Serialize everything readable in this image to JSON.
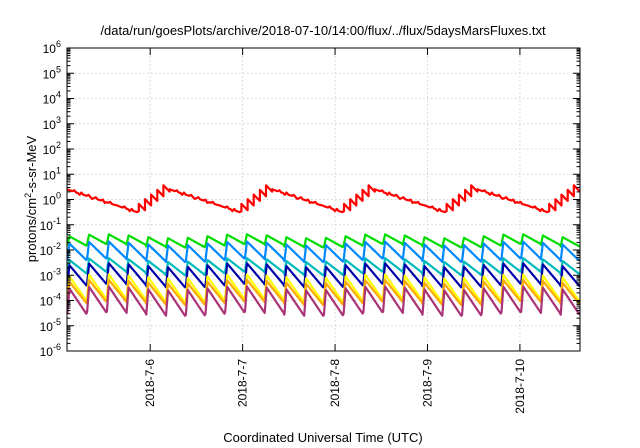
{
  "chart_data": {
    "type": "line",
    "title": "/data/run/goesPlots/archive/2018-07-10/14:00/flux/../flux/5daysMarsFluxes.txt",
    "xlabel": "Coordinated Universal Time (UTC)",
    "ylabel": "protons/cm²-s-sr-MeV",
    "ylabel_parts": {
      "pre": "protons/cm",
      "sup": "2",
      "post": "-s-sr-MeV"
    },
    "yscale": "log",
    "ylim_exp": [
      -6,
      6
    ],
    "y_tick_labels": [
      {
        "base": "10",
        "exp": "-6"
      },
      {
        "base": "10",
        "exp": "-5"
      },
      {
        "base": "10",
        "exp": "-4"
      },
      {
        "base": "10",
        "exp": "-3"
      },
      {
        "base": "10",
        "exp": "-2"
      },
      {
        "base": "10",
        "exp": "-1"
      },
      {
        "base": "10",
        "exp": "0"
      },
      {
        "base": "10",
        "exp": "1"
      },
      {
        "base": "10",
        "exp": "2"
      },
      {
        "base": "10",
        "exp": "3"
      },
      {
        "base": "10",
        "exp": "4"
      },
      {
        "base": "10",
        "exp": "5"
      },
      {
        "base": "10",
        "exp": "6"
      }
    ],
    "xlim_days": [
      5.1,
      10.65
    ],
    "x_ticks": [
      {
        "day": 6,
        "label": "2018-7-6"
      },
      {
        "day": 7,
        "label": "2018-7-7"
      },
      {
        "day": 8,
        "label": "2018-7-8"
      },
      {
        "day": 9,
        "label": "2018-7-9"
      },
      {
        "day": 10,
        "label": "2018-7-10"
      }
    ],
    "grid": true,
    "legend": "none",
    "series": [
      {
        "color": "#ff0000",
        "high": 2.5,
        "low": 0.3,
        "cycles": 5,
        "teeth_per_cycle": 5,
        "style": "slow"
      },
      {
        "color": "#00dd00",
        "high": 0.035,
        "low": 0.015,
        "cycles": 26,
        "style": "saw"
      },
      {
        "color": "#0088ff",
        "high": 0.018,
        "low": 0.004,
        "cycles": 26,
        "style": "saw"
      },
      {
        "color": "#00bbbb",
        "high": 0.004,
        "low": 0.0012,
        "cycles": 26,
        "style": "saw"
      },
      {
        "color": "#0000aa",
        "high": 0.0025,
        "low": 0.0004,
        "cycles": 26,
        "style": "saw"
      },
      {
        "color": "#ffff00",
        "high": 0.0009,
        "low": 0.0001,
        "cycles": 26,
        "style": "saw"
      },
      {
        "color": "#ffaa00",
        "high": 0.00055,
        "low": 8e-05,
        "cycles": 26,
        "style": "saw"
      },
      {
        "color": "#aa3377",
        "high": 0.0003,
        "low": 3e-05,
        "cycles": 26,
        "style": "saw"
      }
    ]
  }
}
